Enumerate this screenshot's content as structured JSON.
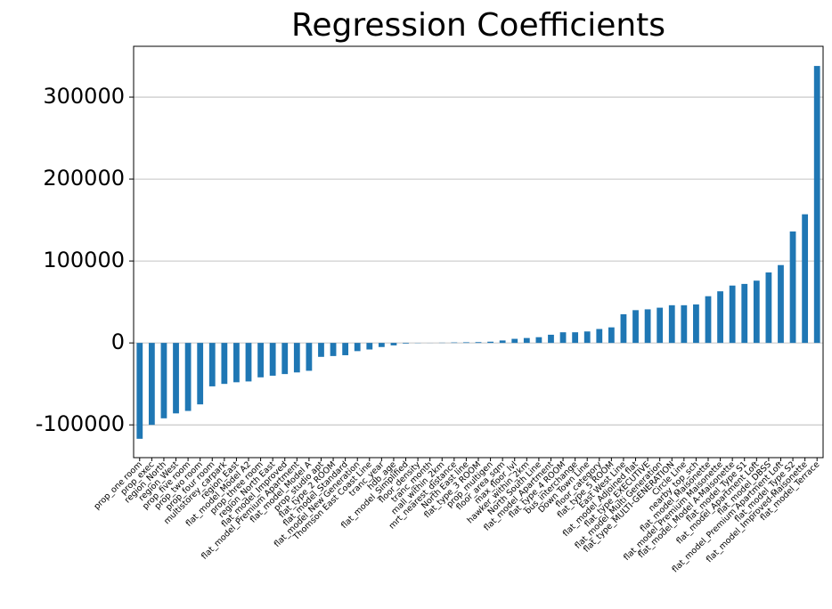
{
  "chart_data": {
    "type": "bar",
    "title": "Regression Coefficients",
    "categories": [
      "prop_one room",
      "prop_exec",
      "region_North",
      "region_West",
      "prop_five room",
      "prop_two room",
      "prop_four room",
      "multistorey_carpark",
      "region_East",
      "flat_model_Model A2",
      "prop_three room",
      "region_North East",
      "flat_model_Improved",
      "flat_model_Premium Apartment",
      "flat_model_Model A",
      "prop_studio apt",
      "flat_type_2 ROOM",
      "flat_model_Standard",
      "flat_model_New Generation",
      "Thomson East Coast Line",
      "tranc_year",
      "hdb_age",
      "flat_model_Simplified",
      "floor_density",
      "tranc_month",
      "mall_within_2km",
      "mrt_nearest_distance",
      "North East line",
      "flat_type_3 ROOM",
      "prop_multigen",
      "floor_area_sqm",
      "max_floor_lvl",
      "hawker_within_2km",
      "North South Line",
      "flat_model_Apartment",
      "flat_type_4 ROOM",
      "bus_interchange",
      "Down Town Line",
      "floor_category",
      "flat_type_5 ROOM",
      "East West Line",
      "flat_model_Adjoined flat",
      "flat_type_EXECUTIVE",
      "flat_model_Multi Generation",
      "flat_type_MULTI-GENERATION",
      "Circle Line",
      "nearby_top_sch",
      "flat_model_Maisonette",
      "flat_model_Premium Maisonette",
      "flat_model_Model A-Maisonette",
      "flat_model_Type S1",
      "flat_model_Apartment Loft",
      "flat_model_DBSS",
      "flat_model_Premium Apartment Loft",
      "flat_model_Type S2",
      "flat_model_Improved-Maisonette",
      "flat_model_Terrace"
    ],
    "values": [
      -117000,
      -100000,
      -92000,
      -86000,
      -83000,
      -75000,
      -53000,
      -50000,
      -48000,
      -47000,
      -42000,
      -40000,
      -38000,
      -36000,
      -34000,
      -17000,
      -16000,
      -15000,
      -10000,
      -8000,
      -5000,
      -3000,
      -800,
      -300,
      100,
      300,
      600,
      800,
      1000,
      1500,
      3000,
      5000,
      6000,
      7000,
      10000,
      13000,
      13000,
      14000,
      17000,
      19000,
      35000,
      40000,
      41000,
      43000,
      46000,
      46000,
      47000,
      57000,
      63000,
      70000,
      72000,
      76000,
      86000,
      95000,
      136000,
      157000,
      338000
    ],
    "color": "#1f77b4",
    "ylim": [
      -140000,
      362000
    ],
    "yticks": [
      -100000,
      0,
      100000,
      200000,
      300000
    ],
    "grid": true
  }
}
